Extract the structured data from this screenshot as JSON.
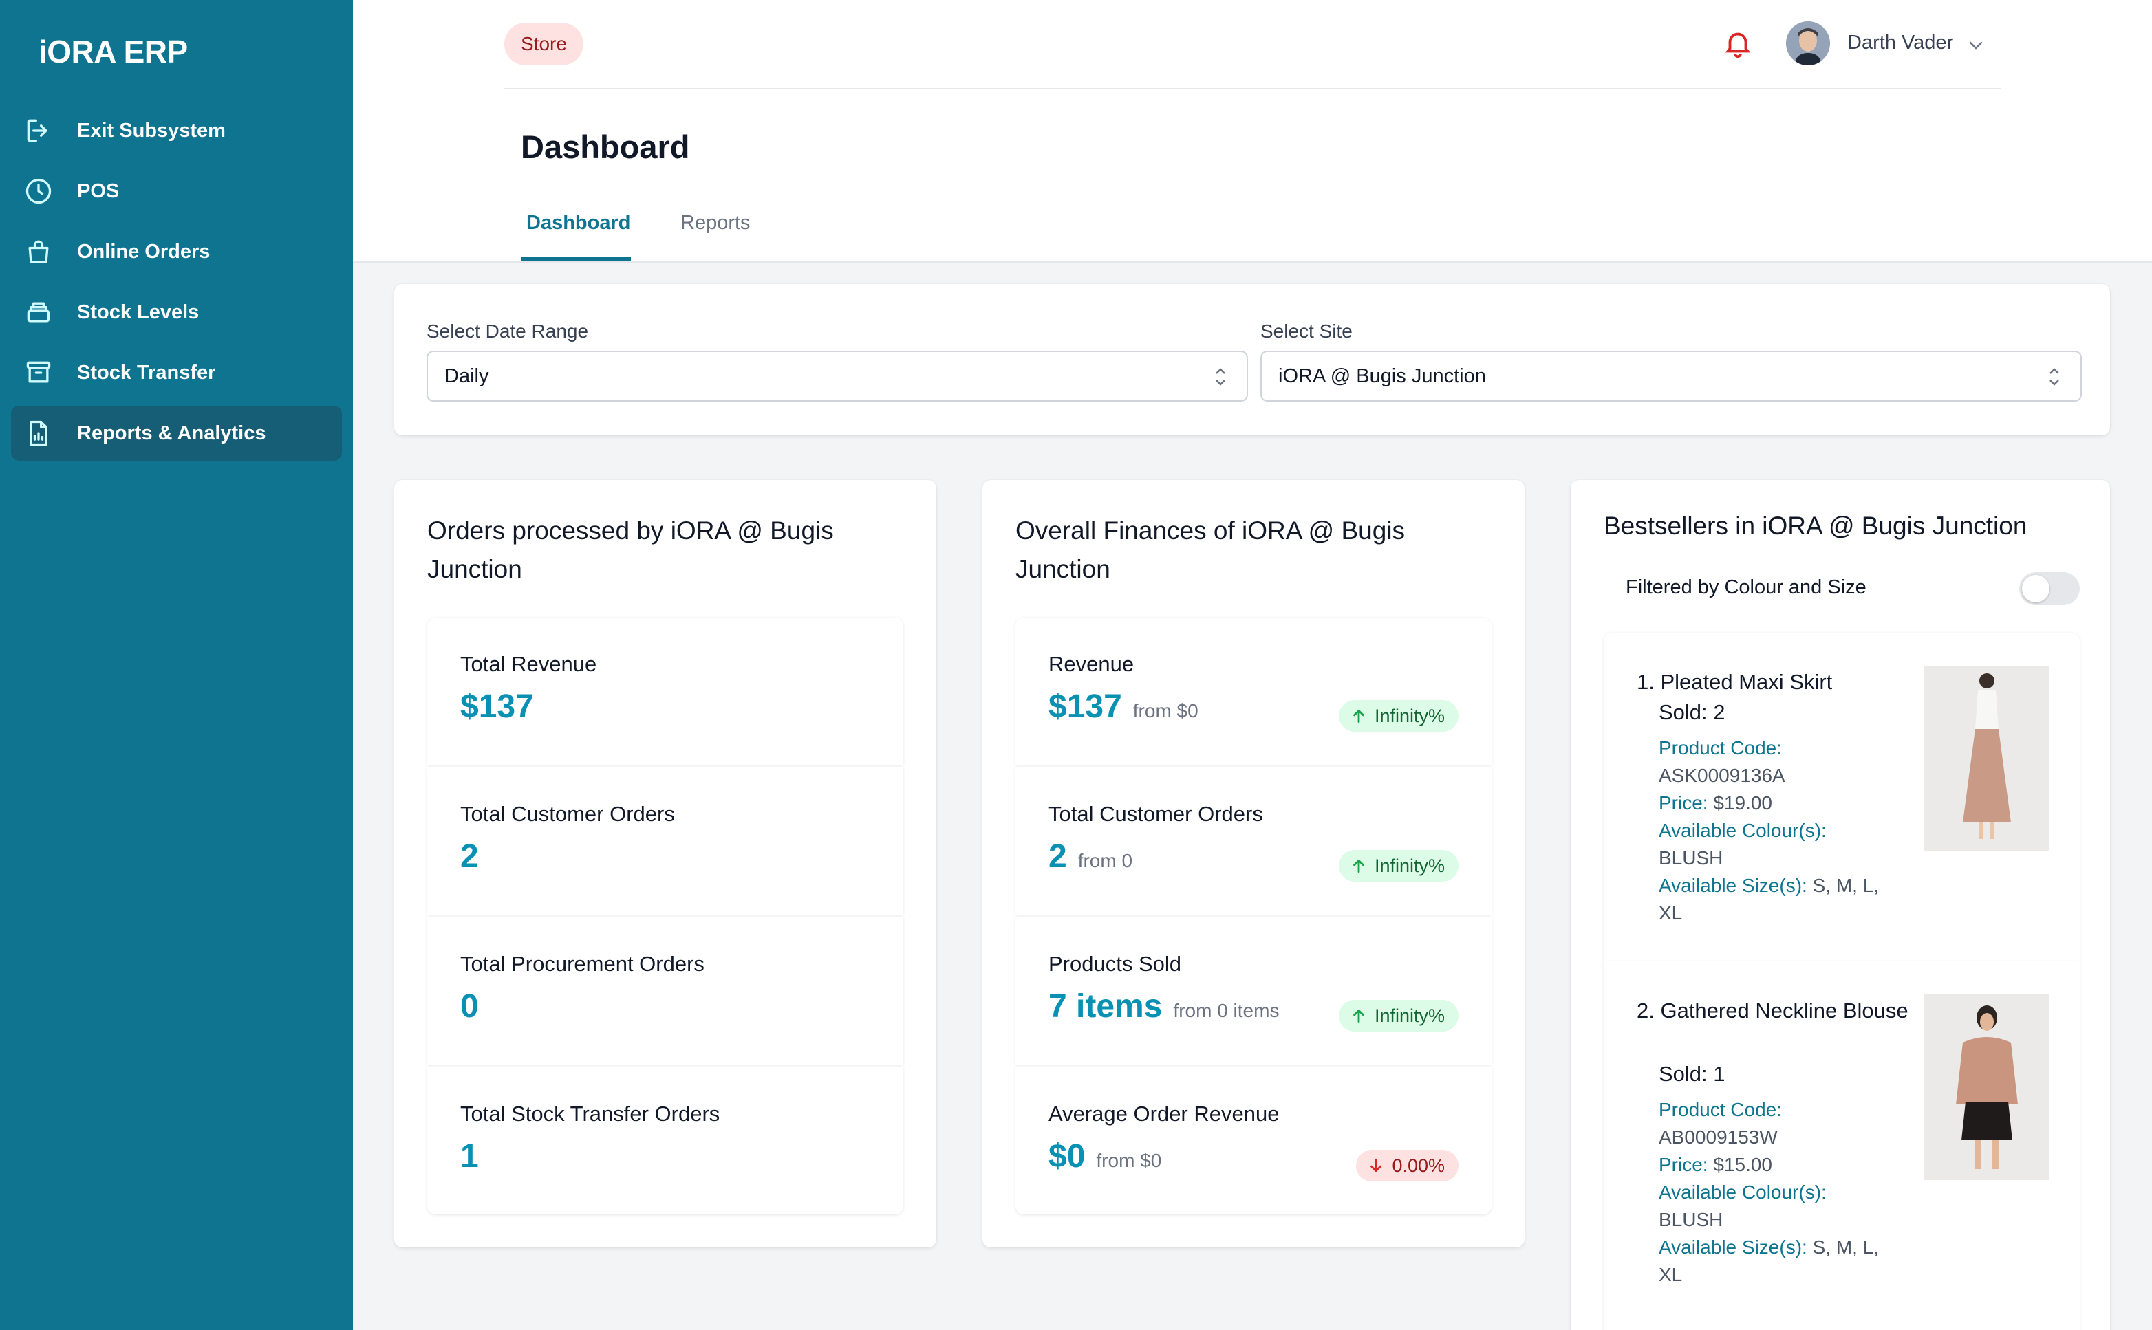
{
  "app": {
    "brand": "iORA ERP"
  },
  "sidebar": {
    "items": [
      {
        "label": "Exit Subsystem",
        "icon": "exit-icon"
      },
      {
        "label": "POS",
        "icon": "clock-icon"
      },
      {
        "label": "Online Orders",
        "icon": "shopping-bag-icon"
      },
      {
        "label": "Stock Levels",
        "icon": "stack-icon"
      },
      {
        "label": "Stock Transfer",
        "icon": "archive-icon"
      },
      {
        "label": "Reports & Analytics",
        "icon": "report-chart-icon",
        "active": true
      }
    ]
  },
  "header": {
    "badge": "Store",
    "user_name": "Darth Vader",
    "page_title": "Dashboard",
    "tabs": [
      {
        "label": "Dashboard",
        "active": true
      },
      {
        "label": "Reports",
        "active": false
      }
    ]
  },
  "filters": {
    "date_range": {
      "label": "Select Date Range",
      "value": "Daily"
    },
    "site": {
      "label": "Select Site",
      "value": "iORA @ Bugis Junction"
    }
  },
  "orders": {
    "title": "Orders processed by iORA @ Bugis Junction",
    "title_line1": "Orders processed by iORA @ Bugis",
    "title_line2": "Junction",
    "stats": [
      {
        "label": "Total Revenue",
        "value": "$137"
      },
      {
        "label": "Total Customer Orders",
        "value": "2"
      },
      {
        "label": "Total Procurement Orders",
        "value": "0"
      },
      {
        "label": "Total Stock Transfer Orders",
        "value": "1"
      }
    ]
  },
  "finances": {
    "title_line1": "Overall Finances of iORA @ Bugis",
    "title_line2": "Junction",
    "stats": [
      {
        "label": "Revenue",
        "value": "$137",
        "from": "from $0",
        "change": "Infinity%",
        "direction": "up"
      },
      {
        "label": "Total Customer Orders",
        "value": "2",
        "from": "from 0",
        "change": "Infinity%",
        "direction": "up"
      },
      {
        "label": "Products Sold",
        "value": "7 items",
        "from": "from 0 items",
        "change": "Infinity%",
        "direction": "up"
      },
      {
        "label": "Average Order Revenue",
        "value": "$0",
        "from": "from $0",
        "change": "0.00%",
        "direction": "down"
      }
    ]
  },
  "bestsellers": {
    "title": "Bestsellers in iORA @ Bugis Junction",
    "filter_label": "Filtered by Colour and Size",
    "filter_on": false,
    "labels": {
      "product_code": "Product Code:",
      "price": "Price:",
      "colours": "Available Colour(s):",
      "sizes": "Available Size(s):"
    },
    "products": [
      {
        "name": "1. Pleated Maxi Skirt",
        "sold": "Sold: 2",
        "code": "ASK0009136A",
        "price": "$19.00",
        "colours": "BLUSH",
        "sizes": "S, M, L,",
        "sizes_wrap": "XL"
      },
      {
        "name": "2. Gathered Neckline Blouse",
        "sold": "Sold: 1",
        "code": "AB0009153W",
        "price": "$15.00",
        "colours": "BLUSH",
        "sizes": "S, M, L,",
        "sizes_wrap": "XL"
      }
    ]
  },
  "colors": {
    "sidebar": "#0e7490",
    "sidebar_active": "#155e75",
    "accent": "#0891b2",
    "up": "#16a34a",
    "down": "#dc2626"
  }
}
